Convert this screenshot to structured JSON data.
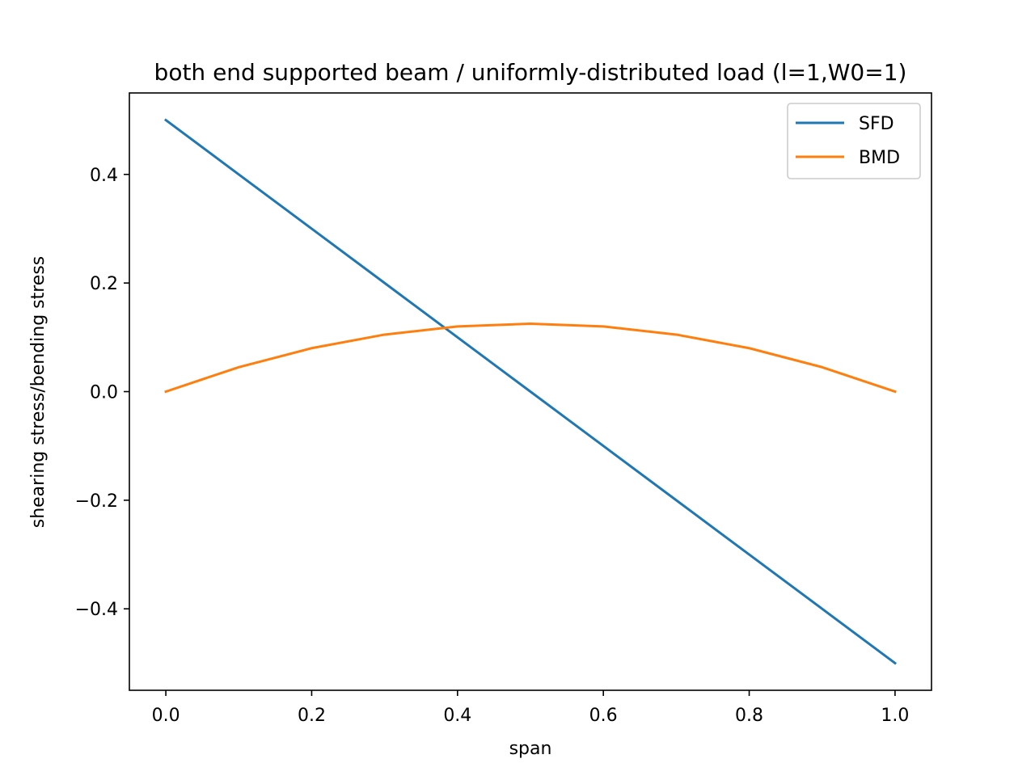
{
  "chart_data": {
    "type": "line",
    "title": "both end supported beam / uniformly-distributed load (l=1,W0=1)",
    "xlabel": "span",
    "ylabel": "shearing stress/bending stress",
    "xlim": [
      -0.05,
      1.05
    ],
    "ylim": [
      -0.55,
      0.55
    ],
    "x_ticks": [
      0.0,
      0.2,
      0.4,
      0.6,
      0.8,
      1.0
    ],
    "x_tick_labels": [
      "0.0",
      "0.2",
      "0.4",
      "0.6",
      "0.8",
      "1.0"
    ],
    "y_ticks": [
      0.4,
      0.2,
      0.0,
      -0.2,
      -0.4
    ],
    "y_tick_labels": [
      "0.4",
      "0.2",
      "0.0",
      "−0.2",
      "−0.4"
    ],
    "grid": false,
    "legend_position": "top-right",
    "x": [
      0.0,
      0.1,
      0.2,
      0.3,
      0.4,
      0.5,
      0.6,
      0.7,
      0.8,
      0.9,
      1.0
    ],
    "series": [
      {
        "name": "SFD",
        "color": "#1f77b4",
        "values": [
          0.5,
          0.4,
          0.3,
          0.2,
          0.1,
          0.0,
          -0.1,
          -0.2,
          -0.3,
          -0.4,
          -0.5
        ]
      },
      {
        "name": "BMD",
        "color": "#ff7f0e",
        "values": [
          0.0,
          0.045,
          0.08,
          0.105,
          0.12,
          0.125,
          0.12,
          0.105,
          0.08,
          0.045,
          0.0
        ]
      }
    ]
  }
}
